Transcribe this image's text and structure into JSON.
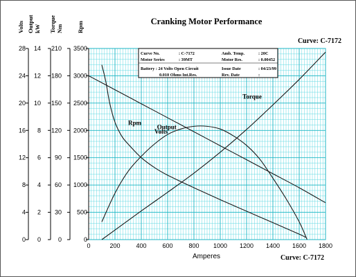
{
  "chart_data": {
    "type": "line",
    "title": "Cranking Motor Performance",
    "curve_label": "Curve: C-7172",
    "xlabel": "Amperes",
    "xlim": [
      0,
      1800
    ],
    "x_ticks": [
      0,
      200,
      400,
      600,
      800,
      1000,
      1200,
      1400,
      1600,
      1800
    ],
    "grid": true,
    "axes": [
      {
        "key": "volts",
        "label": "Volts",
        "min": 0,
        "max": 28,
        "ticks": [
          0,
          4,
          8,
          12,
          16,
          20,
          24,
          28
        ]
      },
      {
        "key": "kw",
        "label": "Output kW",
        "min": 0,
        "max": 14,
        "ticks": [
          0,
          2,
          4,
          6,
          8,
          10,
          12,
          14
        ]
      },
      {
        "key": "nm",
        "label": "Torque Nm",
        "min": 0,
        "max": 210,
        "ticks": [
          0,
          30,
          60,
          90,
          120,
          150,
          180,
          210
        ]
      },
      {
        "key": "rpm",
        "label": "Rpm",
        "min": 0,
        "max": 3500,
        "ticks": [
          0,
          500,
          1000,
          1500,
          2000,
          2500,
          3000,
          3500
        ]
      }
    ],
    "series": [
      {
        "name": "Volts",
        "axis": "volts",
        "x": [
          0,
          200,
          400,
          600,
          800,
          1000,
          1200,
          1400,
          1600,
          1800
        ],
        "y": [
          24.0,
          21.95,
          19.9,
          17.85,
          15.8,
          13.75,
          11.7,
          9.65,
          7.6,
          5.4
        ]
      },
      {
        "name": "Torque",
        "axis": "nm",
        "x": [
          100,
          200,
          400,
          600,
          800,
          1000,
          1200,
          1400,
          1600,
          1800
        ],
        "y": [
          0,
          10.5,
          31.5,
          52,
          73,
          96,
          121,
          148,
          176,
          206
        ]
      },
      {
        "name": "Output",
        "axis": "kw",
        "x": [
          100,
          200,
          300,
          400,
          500,
          600,
          700,
          800,
          900,
          1000,
          1100,
          1200,
          1300,
          1400,
          1500,
          1600,
          1660
        ],
        "y": [
          1.3,
          3.4,
          5.0,
          6.1,
          7.0,
          7.7,
          8.1,
          8.3,
          8.3,
          8.1,
          7.6,
          6.9,
          5.9,
          4.5,
          3.0,
          1.3,
          0
        ]
      },
      {
        "name": "Rpm",
        "axis": "rpm",
        "x": [
          100,
          130,
          160,
          200,
          250,
          300,
          400,
          500,
          600,
          800,
          1000,
          1200,
          1400,
          1600,
          1650
        ],
        "y": [
          3200,
          2900,
          2500,
          2150,
          1900,
          1750,
          1500,
          1320,
          1180,
          950,
          730,
          520,
          310,
          100,
          40
        ]
      }
    ],
    "series_label_positions": {
      "Volts": [
        500,
        15.5
      ],
      "Torque": [
        1170,
        155
      ],
      "Output": [
        520,
        8.1
      ],
      "Rpm": [
        300,
        2100
      ]
    },
    "info_box": {
      "rows": [
        [
          "Curve No.",
          ": C-7172",
          "Amb. Temp.",
          ": 20C"
        ],
        [
          "Motor Series",
          ": 39MT",
          "Motor Res.",
          ": 0.00452"
        ],
        [
          "Battery : 24 Volts Open Circuit",
          "",
          "Issue Date",
          ": 04/23/99"
        ],
        [
          "0.010 Ohms Int.Res.",
          "",
          "Rev. Date",
          ":"
        ]
      ]
    }
  }
}
